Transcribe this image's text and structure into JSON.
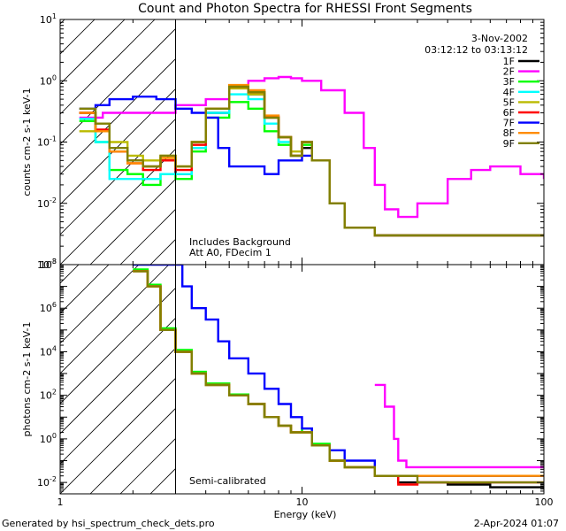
{
  "chart_data": {
    "type": "line",
    "title": "Count and Photon Spectra for RHESSI Front Segments",
    "date": "3-Nov-2002",
    "time_range": "03:12:12 to 03:13:12",
    "xlabel": "Energy (keV)",
    "x_scale": "log",
    "xlim": [
      1,
      100
    ],
    "x_ticks": [
      "1",
      "10",
      "100"
    ],
    "footer_left": "Generated by hsi_spectrum_check_dets.pro",
    "footer_right": "2-Apr-2024 01:07",
    "panels": [
      {
        "name": "counts",
        "ylabel": "counts cm-2 s-1 keV-1",
        "y_scale": "log",
        "ylim": [
          0.001,
          10
        ],
        "y_ticks": [
          "10^-3",
          "10^-2",
          "10^-1",
          "10^0",
          "10^1"
        ],
        "notes": [
          "Includes Background",
          "Att A0, FDecim 1"
        ],
        "series": [
          {
            "name": "1F",
            "color": "#000000",
            "x": [
              1.2,
              1.4,
              1.6,
              1.9,
              2.2,
              2.6,
              3.0,
              3.5,
              4.0,
              5.0,
              6.0,
              7.0,
              8.0,
              9.0,
              10.0,
              11.0,
              13.0,
              15.0,
              20.0,
              30.0,
              50.0,
              80.0,
              100.0
            ],
            "y": [
              0.3,
              0.15,
              0.07,
              0.05,
              0.04,
              0.05,
              0.03,
              0.08,
              0.3,
              0.8,
              0.6,
              0.25,
              0.12,
              0.06,
              0.08,
              0.05,
              0.01,
              0.004,
              0.003,
              0.003,
              0.003,
              0.003,
              0.003
            ]
          },
          {
            "name": "2F",
            "color": "#ff00ff",
            "x": [
              1.2,
              1.5,
              2.0,
              3.0,
              4.0,
              5.0,
              6.0,
              7.0,
              8.0,
              9.0,
              10.0,
              12.0,
              15.0,
              18.0,
              20.0,
              22.0,
              25.0,
              30.0,
              40.0,
              50.0,
              60.0,
              80.0,
              100.0
            ],
            "y": [
              0.25,
              0.3,
              0.3,
              0.4,
              0.5,
              0.8,
              1.0,
              1.1,
              1.15,
              1.1,
              1.0,
              0.7,
              0.3,
              0.08,
              0.02,
              0.008,
              0.006,
              0.01,
              0.025,
              0.035,
              0.04,
              0.03,
              0.025
            ]
          },
          {
            "name": "3F",
            "color": "#00ff00",
            "x": [
              1.2,
              1.4,
              1.6,
              1.9,
              2.2,
              2.6,
              3.0,
              3.5,
              4.0,
              5.0,
              6.0,
              7.0,
              8.0,
              9.0,
              10.0,
              11.0,
              13.0,
              15.0,
              20.0,
              30.0,
              50.0,
              80.0,
              100.0
            ],
            "y": [
              0.22,
              0.1,
              0.035,
              0.03,
              0.02,
              0.03,
              0.025,
              0.07,
              0.25,
              0.45,
              0.35,
              0.15,
              0.09,
              0.06,
              0.09,
              0.05,
              0.01,
              0.004,
              0.003,
              0.003,
              0.003,
              0.003,
              0.003
            ]
          },
          {
            "name": "4F",
            "color": "#00ffff",
            "x": [
              1.2,
              1.4,
              1.6,
              1.9,
              2.2,
              2.6,
              3.0,
              3.5,
              4.0,
              5.0,
              6.0,
              7.0,
              8.0,
              9.0,
              10.0,
              11.0,
              13.0,
              15.0,
              20.0,
              30.0,
              50.0,
              80.0,
              100.0
            ],
            "y": [
              0.24,
              0.1,
              0.025,
              0.025,
              0.025,
              0.03,
              0.03,
              0.08,
              0.3,
              0.6,
              0.5,
              0.2,
              0.1,
              0.06,
              0.1,
              0.05,
              0.01,
              0.004,
              0.003,
              0.003,
              0.003,
              0.003,
              0.003
            ]
          },
          {
            "name": "5F",
            "color": "#bbbb00",
            "x": [
              1.2,
              1.4,
              1.6,
              1.9,
              2.2,
              2.6,
              3.0,
              3.5,
              4.0,
              5.0,
              6.0,
              7.0,
              8.0,
              9.0,
              10.0,
              11.0,
              13.0,
              15.0,
              20.0,
              30.0,
              50.0,
              80.0,
              100.0
            ],
            "y": [
              0.15,
              0.15,
              0.1,
              0.06,
              0.05,
              0.06,
              0.04,
              0.1,
              0.35,
              0.75,
              0.6,
              0.25,
              0.12,
              0.07,
              0.1,
              0.05,
              0.01,
              0.004,
              0.003,
              0.003,
              0.003,
              0.003,
              0.003
            ]
          },
          {
            "name": "6F",
            "color": "#ff0000",
            "x": [
              1.2,
              1.4,
              1.6,
              1.9,
              2.2,
              2.6,
              3.0,
              3.5,
              4.0,
              5.0,
              6.0,
              7.0,
              8.0,
              9.0,
              10.0,
              11.0,
              13.0,
              15.0,
              20.0,
              30.0,
              50.0,
              80.0,
              100.0
            ],
            "y": [
              0.3,
              0.16,
              0.07,
              0.045,
              0.035,
              0.05,
              0.035,
              0.09,
              0.35,
              0.8,
              0.65,
              0.26,
              0.12,
              0.06,
              0.1,
              0.05,
              0.01,
              0.004,
              0.003,
              0.003,
              0.003,
              0.003,
              0.003
            ]
          },
          {
            "name": "7F",
            "color": "#0000ff",
            "x": [
              1.2,
              1.4,
              1.6,
              2.0,
              2.5,
              3.0,
              3.5,
              4.0,
              4.5,
              5.0,
              6.0,
              7.0,
              8.0,
              9.0,
              10.0,
              11.0,
              13.0,
              15.0,
              20.0,
              30.0,
              50.0,
              80.0,
              100.0
            ],
            "y": [
              0.35,
              0.4,
              0.5,
              0.55,
              0.5,
              0.35,
              0.3,
              0.25,
              0.08,
              0.04,
              0.04,
              0.03,
              0.05,
              0.05,
              0.06,
              0.05,
              0.01,
              0.004,
              0.003,
              0.003,
              0.003,
              0.003,
              0.003
            ]
          },
          {
            "name": "8F",
            "color": "#ff8c00",
            "x": [
              1.2,
              1.4,
              1.6,
              1.9,
              2.2,
              2.6,
              3.0,
              3.5,
              4.0,
              5.0,
              6.0,
              7.0,
              8.0,
              9.0,
              10.0,
              11.0,
              13.0,
              15.0,
              20.0,
              30.0,
              50.0,
              80.0,
              100.0
            ],
            "y": [
              0.3,
              0.15,
              0.07,
              0.045,
              0.04,
              0.055,
              0.04,
              0.1,
              0.35,
              0.85,
              0.7,
              0.27,
              0.12,
              0.06,
              0.1,
              0.05,
              0.01,
              0.004,
              0.003,
              0.003,
              0.003,
              0.003,
              0.003
            ]
          },
          {
            "name": "9F",
            "color": "#808000",
            "x": [
              1.2,
              1.4,
              1.6,
              1.9,
              2.2,
              2.6,
              3.0,
              3.5,
              4.0,
              5.0,
              6.0,
              7.0,
              8.0,
              9.0,
              10.0,
              11.0,
              13.0,
              15.0,
              20.0,
              30.0,
              50.0,
              80.0,
              100.0
            ],
            "y": [
              0.35,
              0.2,
              0.08,
              0.05,
              0.04,
              0.06,
              0.04,
              0.1,
              0.35,
              0.8,
              0.65,
              0.25,
              0.12,
              0.06,
              0.1,
              0.05,
              0.01,
              0.004,
              0.003,
              0.003,
              0.003,
              0.003,
              0.003
            ]
          }
        ]
      },
      {
        "name": "photons",
        "ylabel": "photons cm-2 s-1 keV-1",
        "y_scale": "log",
        "ylim": [
          0.003,
          100000000
        ],
        "y_ticks": [
          "10^-2",
          "10^0",
          "10^2",
          "10^4",
          "10^6",
          "10^8"
        ],
        "notes": [
          "Semi-calibrated"
        ],
        "series": [
          {
            "name": "1F",
            "color": "#000000",
            "x": [
              2.0,
              2.3,
              2.6,
              3.0,
              3.5,
              4.0,
              5.0,
              6.0,
              7.0,
              8.0,
              9.0,
              10.0,
              11.0,
              13.0,
              15.0,
              20.0,
              25.0,
              30.0,
              40.0,
              60.0,
              100.0
            ],
            "y": [
              50000000,
              10000000,
              100000,
              10000,
              1000,
              300,
              100,
              40,
              10,
              4,
              2,
              2,
              0.5,
              0.1,
              0.05,
              0.02,
              0.01,
              0.01,
              0.008,
              0.006,
              0.005
            ]
          },
          {
            "name": "2F",
            "color": "#ff00ff",
            "x": [
              20.0,
              22.0,
              24.0,
              25.0,
              27.0,
              30.0,
              40.0,
              60.0,
              100.0
            ],
            "y": [
              300,
              30,
              1,
              0.1,
              0.05,
              0.05,
              0.05,
              0.05,
              0.05
            ]
          },
          {
            "name": "3F",
            "color": "#00ff00",
            "x": [
              2.0,
              2.3,
              2.6,
              3.0,
              3.5,
              4.0,
              5.0,
              6.0,
              7.0,
              8.0,
              9.0,
              10.0,
              11.0,
              13.0,
              15.0,
              20.0,
              30.0,
              60.0,
              100.0
            ],
            "y": [
              60000000,
              12000000,
              120000,
              12000,
              1200,
              350,
              110,
              40,
              10,
              4,
              2,
              3,
              0.6,
              0.1,
              0.05,
              0.02,
              0.02,
              0.02,
              0.02
            ]
          },
          {
            "name": "4F",
            "color": "#00ffff",
            "x": [
              2.0,
              2.3,
              2.6,
              3.0,
              3.5,
              4.0,
              5.0,
              6.0,
              7.0,
              8.0,
              9.0,
              10.0,
              11.0,
              13.0,
              15.0,
              20.0,
              30.0,
              60.0,
              100.0
            ],
            "y": [
              50000000,
              10000000,
              100000,
              10000,
              1000,
              300,
              100,
              40,
              10,
              4,
              2,
              2,
              0.5,
              0.1,
              0.05,
              0.02,
              0.02,
              0.02,
              0.02
            ]
          },
          {
            "name": "5F",
            "color": "#bbbb00",
            "x": [
              2.0,
              2.3,
              2.6,
              3.0,
              3.5,
              4.0,
              5.0,
              6.0,
              7.0,
              8.0,
              9.0,
              10.0,
              11.0,
              13.0,
              15.0,
              20.0,
              30.0,
              60.0,
              100.0
            ],
            "y": [
              50000000,
              10000000,
              100000,
              10000,
              1000,
              300,
              100,
              40,
              10,
              4,
              2,
              2,
              0.5,
              0.1,
              0.05,
              0.02,
              0.02,
              0.02,
              0.02
            ]
          },
          {
            "name": "6F",
            "color": "#ff0000",
            "x": [
              2.0,
              2.3,
              2.6,
              3.0,
              3.5,
              4.0,
              5.0,
              6.0,
              7.0,
              8.0,
              9.0,
              10.0,
              11.0,
              13.0,
              15.0,
              20.0,
              25.0,
              30.0,
              60.0,
              100.0
            ],
            "y": [
              50000000,
              10000000,
              100000,
              10000,
              1000,
              300,
              100,
              40,
              10,
              4,
              2,
              2,
              0.5,
              0.1,
              0.05,
              0.02,
              0.008,
              0.01,
              0.01,
              0.01
            ]
          },
          {
            "name": "7F",
            "color": "#0000ff",
            "x": [
              2.0,
              2.3,
              2.6,
              3.0,
              3.2,
              3.5,
              4.0,
              4.5,
              5.0,
              6.0,
              7.0,
              8.0,
              9.0,
              10.0,
              11.0,
              13.0,
              15.0,
              20.0,
              30.0,
              60.0,
              100.0
            ],
            "y": [
              100000000,
              100000000,
              100000000,
              100000000,
              10000000,
              1000000,
              300000,
              30000,
              5000,
              1000,
              200,
              40,
              10,
              3,
              0.5,
              0.3,
              0.1,
              0.02,
              0.02,
              0.02,
              0.02
            ]
          },
          {
            "name": "8F",
            "color": "#ff8c00",
            "x": [
              2.0,
              2.3,
              2.6,
              3.0,
              3.5,
              4.0,
              5.0,
              6.0,
              7.0,
              8.0,
              9.0,
              10.0,
              11.0,
              13.0,
              15.0,
              20.0,
              30.0,
              60.0,
              100.0
            ],
            "y": [
              50000000,
              10000000,
              100000,
              10000,
              1000,
              300,
              100,
              40,
              10,
              4,
              2,
              2,
              0.5,
              0.1,
              0.05,
              0.02,
              0.02,
              0.02,
              0.02
            ]
          },
          {
            "name": "9F",
            "color": "#808000",
            "x": [
              2.0,
              2.3,
              2.6,
              3.0,
              3.5,
              4.0,
              5.0,
              6.0,
              7.0,
              8.0,
              9.0,
              10.0,
              11.0,
              13.0,
              15.0,
              20.0,
              30.0,
              60.0,
              100.0
            ],
            "y": [
              50000000,
              10000000,
              100000,
              10000,
              1000,
              300,
              100,
              40,
              10,
              4,
              2,
              2,
              0.5,
              0.1,
              0.05,
              0.02,
              0.01,
              0.01,
              0.01
            ]
          }
        ]
      }
    ]
  }
}
